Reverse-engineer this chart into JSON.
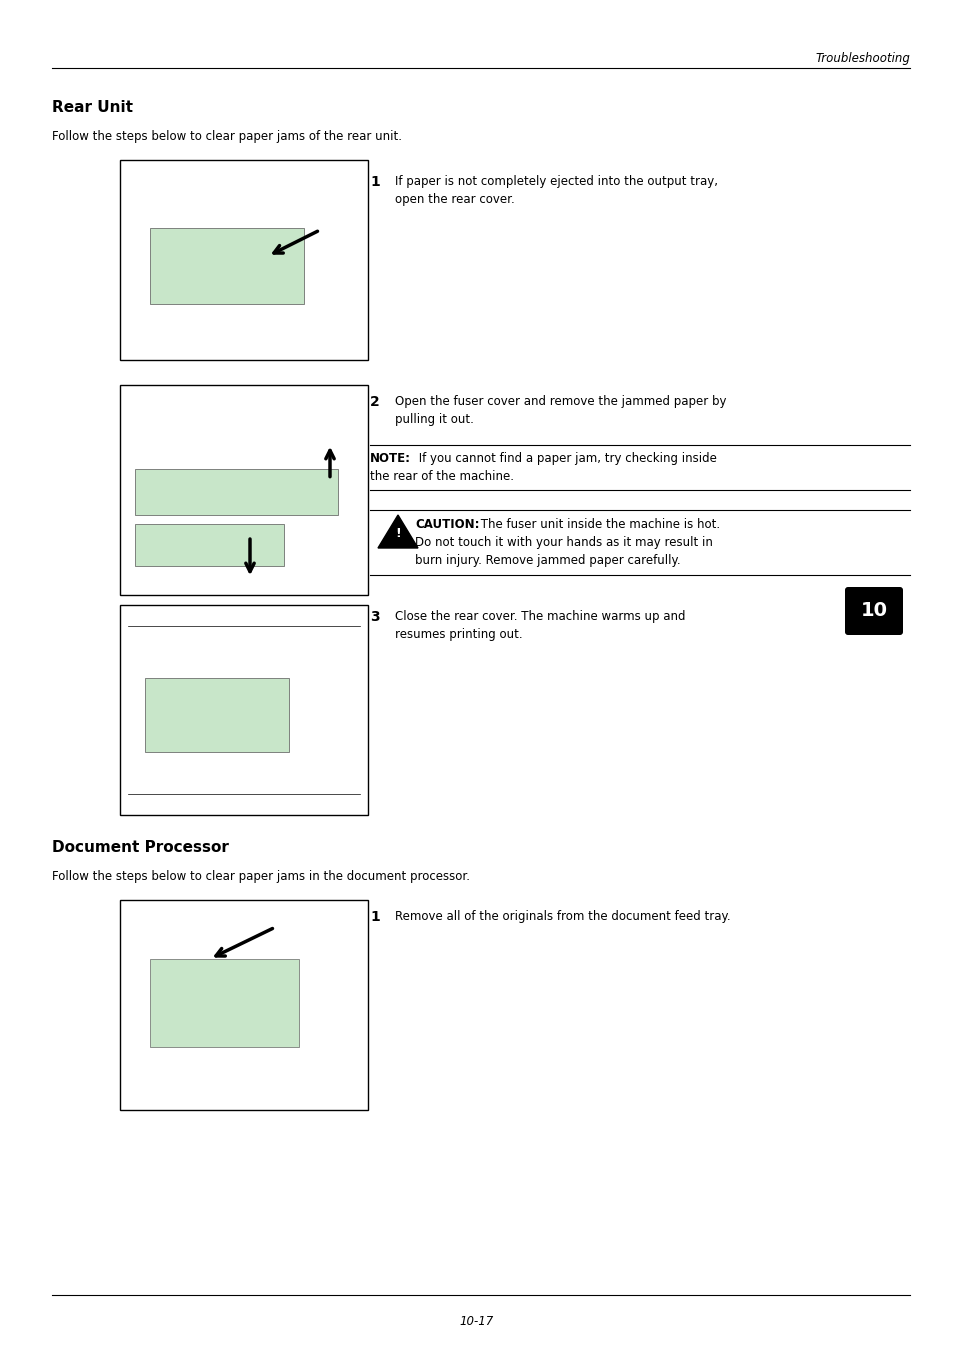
{
  "page_width": 9.54,
  "page_height": 13.5,
  "dpi": 100,
  "bg_color": "#ffffff",
  "header_italic_text": "Troubleshooting",
  "footer_text": "10-17",
  "section1_title": "Rear Unit",
  "section1_intro": "Follow the steps below to clear paper jams of the rear unit.",
  "section2_title": "Document Processor",
  "section2_intro": "Follow the steps below to clear paper jams in the document processor.",
  "step1_num": "1",
  "step1_text_line1": "If paper is not completely ejected into the output tray,",
  "step1_text_line2": "open the rear cover.",
  "step2_num": "2",
  "step2_text_line1": "Open the fuser cover and remove the jammed paper by",
  "step2_text_line2": "pulling it out.",
  "note_label": "NOTE:",
  "note_text_line1": " If you cannot find a paper jam, try checking inside",
  "note_text_line2": "the rear of the machine.",
  "caution_label": "CAUTION:",
  "caution_text_line1": " The fuser unit inside the machine is hot.",
  "caution_text_line2": "Do not touch it with your hands as it may result in",
  "caution_text_line3": "burn injury. Remove jammed paper carefully.",
  "step3_num": "3",
  "step3_text_line1": "Close the rear cover. The machine warms up and",
  "step3_text_line2": "resumes printing out.",
  "step4_num": "1",
  "step4_text": "Remove all of the originals from the document feed tray.",
  "chapter_badge": "10",
  "green_fill": "#c8e6c9"
}
